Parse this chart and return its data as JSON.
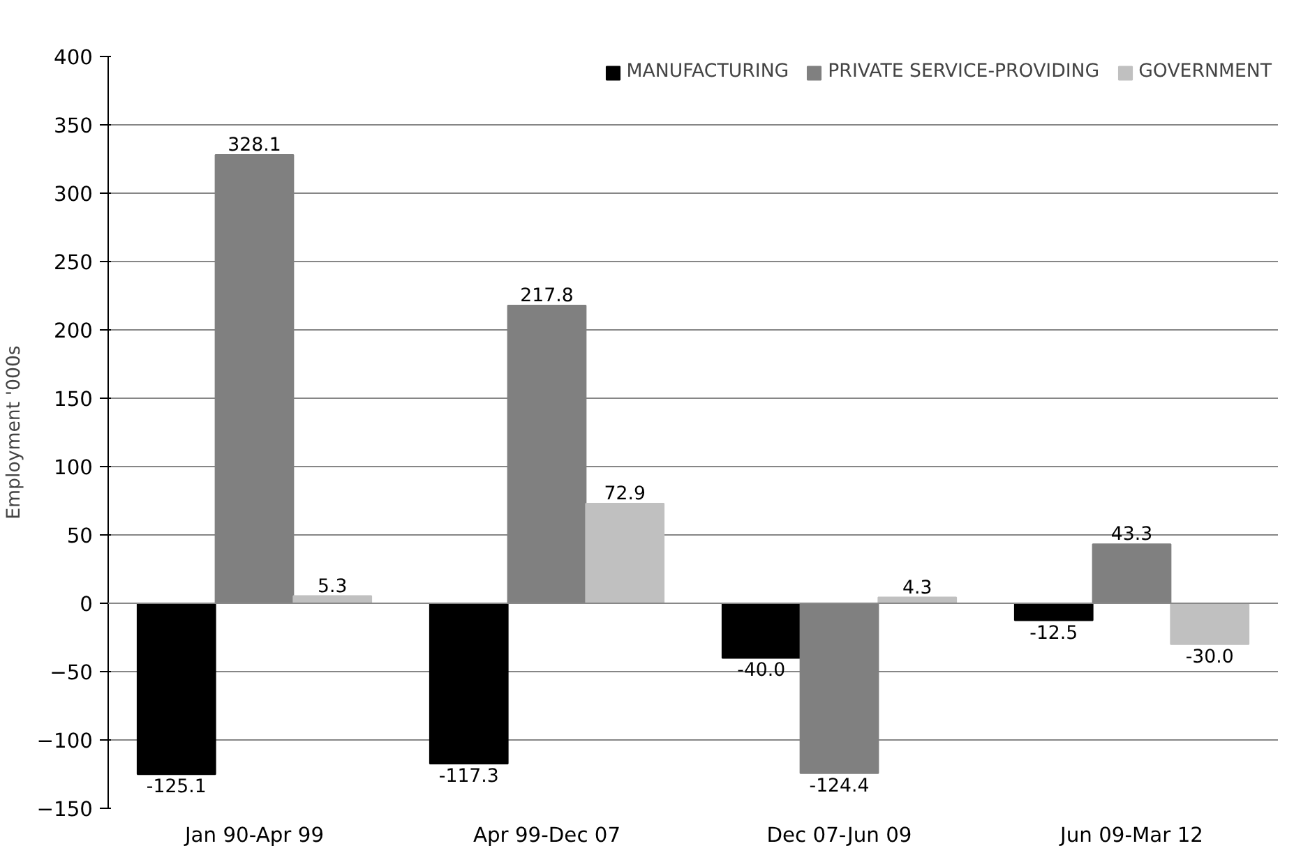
{
  "chart_data": {
    "type": "bar",
    "ylabel": "Employment '000s",
    "categories": [
      "Jan 90-Apr 99",
      "Apr 99-Dec 07",
      "Dec 07-Jun 09",
      "Jun 09-Mar 12"
    ],
    "series": [
      {
        "name": "MANUFACTURING",
        "color": "#000000",
        "values": [
          -125.1,
          -117.3,
          -40.0,
          -12.5
        ],
        "value_labels": [
          "-125.1",
          "-117.3",
          "-40.0",
          "-12.5"
        ]
      },
      {
        "name": "PRIVATE SERVICE-PROVIDING",
        "color": "#808080",
        "values": [
          328.1,
          217.8,
          -124.4,
          43.3
        ],
        "value_labels": [
          "328.1",
          "217.8",
          "-124.4",
          "43.3"
        ]
      },
      {
        "name": "GOVERNMENT",
        "color": "#c0c0c0",
        "values": [
          5.3,
          72.9,
          4.3,
          -30.0
        ],
        "value_labels": [
          "5.3",
          "72.9",
          "4.3",
          "-30.0"
        ]
      }
    ],
    "ylim": [
      -150,
      400
    ],
    "yticks": [
      -150,
      -100,
      -50,
      0,
      50,
      100,
      150,
      200,
      250,
      300,
      350,
      400
    ],
    "grid": "y",
    "legend": "top"
  }
}
